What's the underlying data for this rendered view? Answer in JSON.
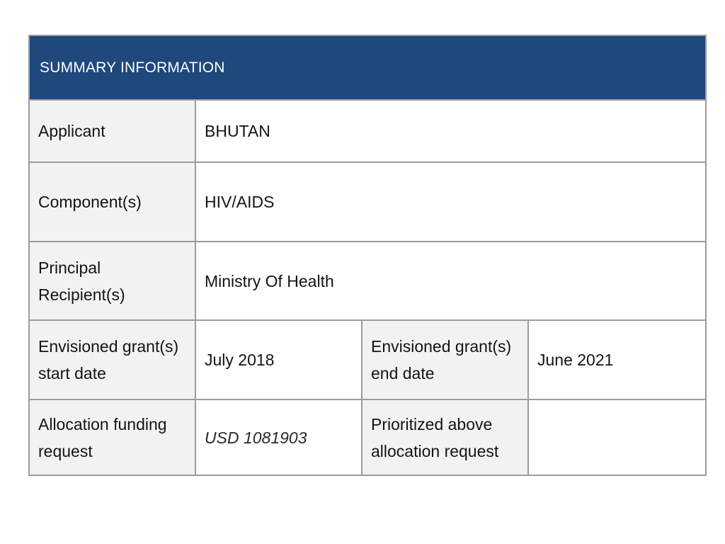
{
  "header": {
    "title": "SUMMARY INFORMATION"
  },
  "rows": {
    "applicant": {
      "label": "Applicant",
      "value": "BHUTAN"
    },
    "components": {
      "label": "Component(s)",
      "value": "HIV/AIDS"
    },
    "principal_recipients": {
      "label": "Principal Recipient(s)",
      "value": "Ministry Of Health"
    },
    "start_date": {
      "label": "Envisioned grant(s) start date",
      "value": "July 2018"
    },
    "end_date": {
      "label": "Envisioned grant(s) end date",
      "value": "June 2021"
    },
    "allocation": {
      "label": "Allocation funding request",
      "value": "USD 1081903"
    },
    "prioritized": {
      "label": "Prioritized above allocation request",
      "value": ""
    }
  },
  "colors": {
    "header_bg": "#1f487c",
    "label_bg": "#f2f2f2",
    "border": "#9c9c9c"
  }
}
